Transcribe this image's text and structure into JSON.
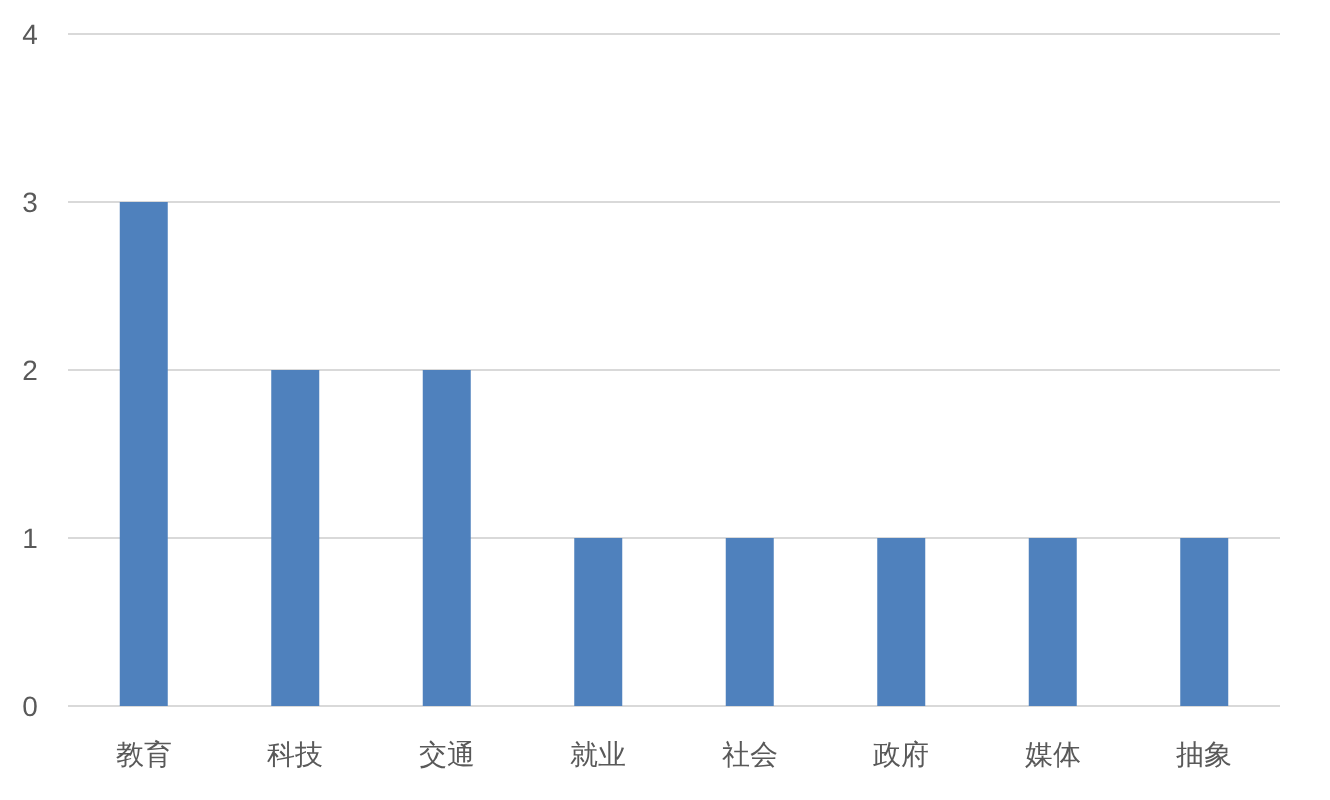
{
  "chart_data": {
    "type": "bar",
    "categories": [
      "教育",
      "科技",
      "交通",
      "就业",
      "社会",
      "政府",
      "媒体",
      "抽象"
    ],
    "values": [
      3,
      2,
      2,
      1,
      1,
      1,
      1,
      1
    ],
    "color": "#4f81bd",
    "ylim": [
      0,
      4
    ],
    "yticks": [
      0,
      1,
      2,
      3,
      4
    ],
    "grid": "y"
  }
}
